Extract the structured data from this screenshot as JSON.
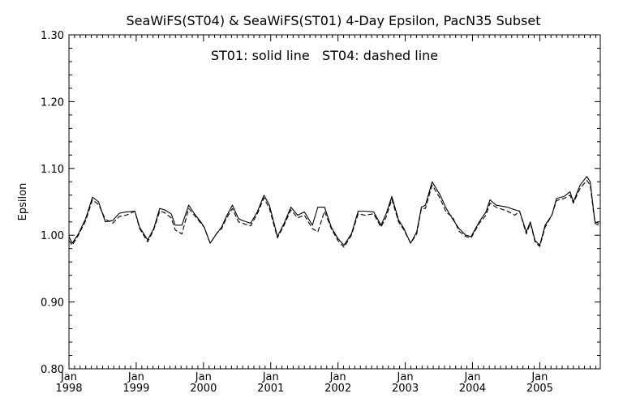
{
  "chart_data": {
    "type": "line",
    "title": "SeaWiFS(ST04) & SeaWiFS(ST01) 4-Day Epsilon, PacN35 Subset",
    "annotation": "ST01: solid line   ST04: dashed line",
    "xlabel": "",
    "ylabel": "Epsilon",
    "xlim": [
      1998.0,
      2005.9
    ],
    "ylim": [
      0.8,
      1.3
    ],
    "y_ticks": [
      "0.80",
      "0.90",
      "1.00",
      "1.10",
      "1.20",
      "1.30"
    ],
    "x_ticks": [
      {
        "month": "Jan",
        "year": "1998",
        "value": 1998
      },
      {
        "month": "Jan",
        "year": "1999",
        "value": 1999
      },
      {
        "month": "Jan",
        "year": "2000",
        "value": 2000
      },
      {
        "month": "Jan",
        "year": "2001",
        "value": 2001
      },
      {
        "month": "Jan",
        "year": "2002",
        "value": 2002
      },
      {
        "month": "Jan",
        "year": "2003",
        "value": 2003
      },
      {
        "month": "Jan",
        "year": "2004",
        "value": 2004
      },
      {
        "month": "Jan",
        "year": "2005",
        "value": 2005
      }
    ],
    "grid": false,
    "legend": "none",
    "series": [
      {
        "name": "ST01",
        "style": "solid",
        "color": "#000000",
        "x": [
          1998.0,
          1998.05,
          1998.14,
          1998.25,
          1998.35,
          1998.44,
          1998.54,
          1998.65,
          1998.75,
          1998.85,
          1998.98,
          1999.05,
          1999.17,
          1999.26,
          1999.35,
          1999.42,
          1999.52,
          1999.58,
          1999.68,
          1999.78,
          1999.88,
          1999.96,
          2000.01,
          2000.1,
          2000.2,
          2000.27,
          2000.34,
          2000.43,
          2000.52,
          2000.58,
          2000.7,
          2000.8,
          2000.9,
          2000.98,
          2001.1,
          2001.2,
          2001.3,
          2001.4,
          2001.5,
          2001.62,
          2001.7,
          2001.8,
          2001.9,
          2002.0,
          2002.09,
          2002.2,
          2002.3,
          2002.4,
          2002.53,
          2002.64,
          2002.72,
          2002.8,
          2002.9,
          2002.98,
          2003.08,
          2003.17,
          2003.24,
          2003.3,
          2003.4,
          2003.52,
          2003.61,
          2003.7,
          2003.8,
          2003.9,
          2003.98,
          2004.1,
          2004.2,
          2004.26,
          2004.35,
          2004.52,
          2004.63,
          2004.7,
          2004.8,
          2004.86,
          2004.93,
          2005.0,
          2005.08,
          2005.18,
          2005.25,
          2005.36,
          2005.45,
          2005.5,
          2005.6,
          2005.7,
          2005.75,
          2005.82,
          2005.88
        ],
        "y": [
          0.998,
          0.988,
          1.002,
          1.025,
          1.057,
          1.05,
          1.02,
          1.022,
          1.033,
          1.035,
          1.036,
          1.012,
          0.993,
          1.01,
          1.04,
          1.038,
          1.032,
          1.015,
          1.015,
          1.045,
          1.03,
          1.02,
          1.012,
          0.988,
          1.003,
          1.012,
          1.028,
          1.045,
          1.025,
          1.022,
          1.018,
          1.035,
          1.06,
          1.045,
          0.998,
          1.018,
          1.042,
          1.03,
          1.035,
          1.015,
          1.042,
          1.042,
          1.012,
          0.995,
          0.985,
          1.002,
          1.036,
          1.036,
          1.035,
          1.015,
          1.033,
          1.058,
          1.023,
          1.01,
          0.988,
          1.005,
          1.042,
          1.045,
          1.08,
          1.06,
          1.04,
          1.025,
          1.01,
          1.0,
          0.998,
          1.02,
          1.035,
          1.053,
          1.045,
          1.042,
          1.038,
          1.036,
          1.005,
          1.02,
          0.992,
          0.985,
          1.015,
          1.03,
          1.055,
          1.058,
          1.065,
          1.05,
          1.075,
          1.088,
          1.08,
          1.02,
          1.018
        ]
      },
      {
        "name": "ST04",
        "style": "dashed",
        "color": "#000000",
        "x": [
          1998.0,
          1998.05,
          1998.14,
          1998.25,
          1998.35,
          1998.44,
          1998.54,
          1998.65,
          1998.75,
          1998.85,
          1998.98,
          1999.05,
          1999.17,
          1999.26,
          1999.35,
          1999.42,
          1999.52,
          1999.58,
          1999.68,
          1999.78,
          1999.88,
          1999.96,
          2000.01,
          2000.1,
          2000.2,
          2000.27,
          2000.34,
          2000.43,
          2000.52,
          2000.58,
          2000.7,
          2000.8,
          2000.9,
          2000.98,
          2001.1,
          2001.2,
          2001.3,
          2001.4,
          2001.5,
          2001.62,
          2001.7,
          2001.8,
          2001.9,
          2002.0,
          2002.09,
          2002.2,
          2002.3,
          2002.4,
          2002.53,
          2002.64,
          2002.72,
          2002.8,
          2002.9,
          2002.98,
          2003.08,
          2003.17,
          2003.24,
          2003.3,
          2003.4,
          2003.52,
          2003.61,
          2003.7,
          2003.8,
          2003.9,
          2003.98,
          2004.1,
          2004.2,
          2004.26,
          2004.35,
          2004.52,
          2004.63,
          2004.7,
          2004.8,
          2004.86,
          2004.93,
          2005.0,
          2005.08,
          2005.18,
          2005.25,
          2005.36,
          2005.45,
          2005.5,
          2005.6,
          2005.7,
          2005.75,
          2005.82,
          2005.88
        ],
        "y": [
          0.992,
          0.985,
          1.0,
          1.022,
          1.053,
          1.046,
          1.024,
          1.018,
          1.028,
          1.03,
          1.036,
          1.01,
          0.99,
          1.008,
          1.036,
          1.034,
          1.026,
          1.008,
          1.002,
          1.04,
          1.028,
          1.018,
          1.012,
          0.988,
          1.003,
          1.01,
          1.025,
          1.04,
          1.02,
          1.018,
          1.014,
          1.032,
          1.056,
          1.04,
          0.996,
          1.015,
          1.038,
          1.026,
          1.03,
          1.01,
          1.005,
          1.036,
          1.01,
          0.992,
          0.982,
          1.0,
          1.032,
          1.03,
          1.032,
          1.012,
          1.028,
          1.054,
          1.02,
          1.008,
          0.988,
          1.002,
          1.04,
          1.04,
          1.075,
          1.055,
          1.034,
          1.028,
          1.006,
          0.998,
          0.996,
          1.018,
          1.03,
          1.048,
          1.042,
          1.036,
          1.03,
          1.036,
          1.002,
          1.018,
          0.99,
          0.983,
          1.012,
          1.03,
          1.052,
          1.055,
          1.06,
          1.048,
          1.07,
          1.082,
          1.075,
          1.018,
          1.015
        ]
      }
    ]
  }
}
